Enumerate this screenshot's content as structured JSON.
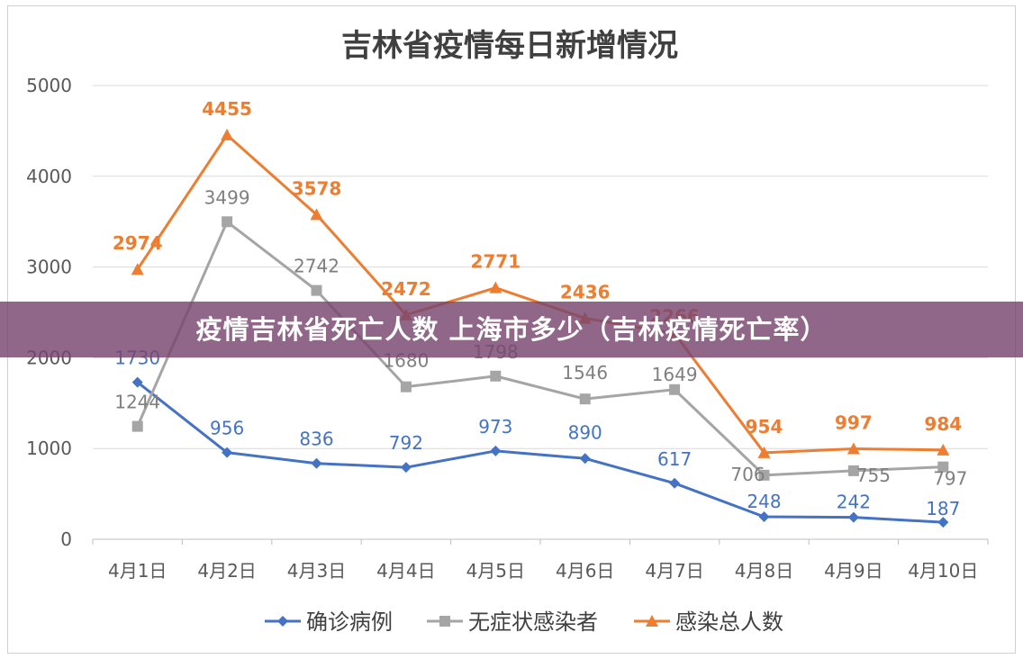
{
  "banner": {
    "text": "疫情吉林省死亡人数 上海市多少（吉林疫情死亡率）"
  },
  "chart_data": {
    "type": "line",
    "title": "吉林省疫情每日新增情况",
    "categories": [
      "4月1日",
      "4月2日",
      "4月3日",
      "4月4日",
      "4月5日",
      "4月6日",
      "4月7日",
      "4月8日",
      "4月9日",
      "4月10日"
    ],
    "ylim": [
      0,
      5000
    ],
    "yticks": [
      0,
      1000,
      2000,
      3000,
      4000,
      5000
    ],
    "grid": true,
    "legend_position": "bottom",
    "series": [
      {
        "name": "确诊病例",
        "color": "#4472C4",
        "marker": "diamond",
        "values": [
          1730,
          956,
          836,
          792,
          973,
          890,
          617,
          248,
          242,
          187
        ]
      },
      {
        "name": "无症状感染者",
        "color": "#A5A5A5",
        "marker": "square",
        "values": [
          1244,
          3499,
          2742,
          1680,
          1798,
          1546,
          1649,
          706,
          755,
          797
        ]
      },
      {
        "name": "感染总人数",
        "color": "#ED7D31",
        "marker": "triangle",
        "values": [
          2974,
          4455,
          3578,
          2472,
          2771,
          2436,
          2266,
          954,
          997,
          984
        ]
      }
    ]
  }
}
